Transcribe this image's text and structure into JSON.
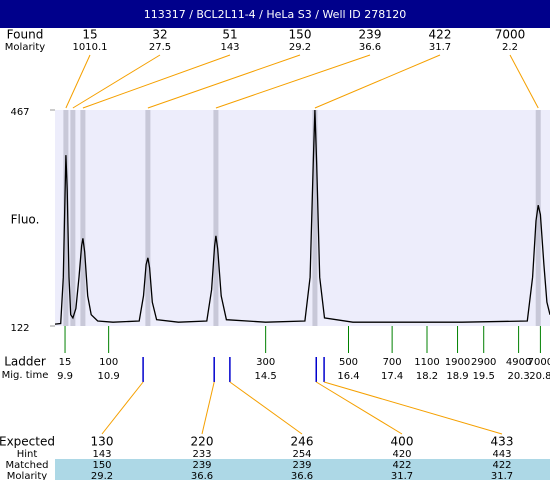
{
  "chart_data": {
    "type": "line",
    "title": "113317 / BCL2L11-4 / HeLa S3 / Well ID 278120",
    "ylabel": "Fluo.",
    "ylim": [
      122,
      467
    ],
    "yticks": [
      122,
      467
    ],
    "xlim": [
      9.67,
      21.02
    ],
    "x": [
      9.67,
      9.8,
      9.86,
      9.9,
      9.92,
      9.95,
      9.99,
      10.03,
      10.08,
      10.15,
      10.22,
      10.28,
      10.31,
      10.35,
      10.42,
      10.5,
      10.65,
      11.0,
      11.6,
      11.7,
      11.76,
      11.8,
      11.84,
      11.9,
      12.0,
      12.5,
      13.15,
      13.26,
      13.33,
      13.36,
      13.4,
      13.48,
      13.6,
      14.5,
      15.4,
      15.52,
      15.59,
      15.63,
      15.67,
      15.74,
      15.85,
      16.5,
      19.0,
      20.5,
      20.62,
      20.7,
      20.75,
      20.8,
      20.88,
      20.95,
      21.02
    ],
    "values": [
      125,
      126,
      200,
      330,
      395,
      340,
      200,
      140,
      135,
      150,
      200,
      250,
      262,
      240,
      170,
      140,
      130,
      128,
      130,
      170,
      220,
      231,
      215,
      160,
      132,
      128,
      130,
      180,
      250,
      266,
      245,
      170,
      132,
      128,
      130,
      200,
      380,
      467,
      380,
      200,
      135,
      128,
      128,
      130,
      200,
      290,
      315,
      300,
      220,
      160,
      140
    ],
    "color": "#000000",
    "found": {
      "label": "Found",
      "molarity_label": "Molarity",
      "sizes": [
        15,
        32,
        51,
        150,
        239,
        422,
        7000
      ],
      "molarity": [
        1010.1,
        27.5,
        143,
        29.2,
        36.6,
        31.7,
        2.2
      ],
      "times": [
        9.92,
        10.08,
        10.31,
        11.8,
        13.36,
        15.63,
        20.75
      ]
    },
    "ladder": {
      "label": "Ladder",
      "time_label": "Mig. time",
      "sizes": [
        15,
        100,
        300,
        500,
        700,
        1100,
        1900,
        2900,
        4900,
        7000
      ],
      "times": [
        9.9,
        10.9,
        14.5,
        16.4,
        17.4,
        18.2,
        18.9,
        19.5,
        20.3,
        20.8
      ]
    },
    "expected": {
      "label": "Expected",
      "hint_label": "Hint",
      "matched_label": "Matched",
      "molarity_label": "Molarity",
      "sizes": [
        130,
        220,
        246,
        400,
        433
      ],
      "hint": [
        143,
        233,
        254,
        420,
        443
      ],
      "matched": [
        150,
        239,
        239,
        422,
        422
      ],
      "molarity": [
        29.2,
        36.6,
        36.6,
        31.7,
        31.7
      ],
      "times": [
        11.69,
        13.32,
        13.68,
        15.66,
        15.84
      ]
    }
  }
}
